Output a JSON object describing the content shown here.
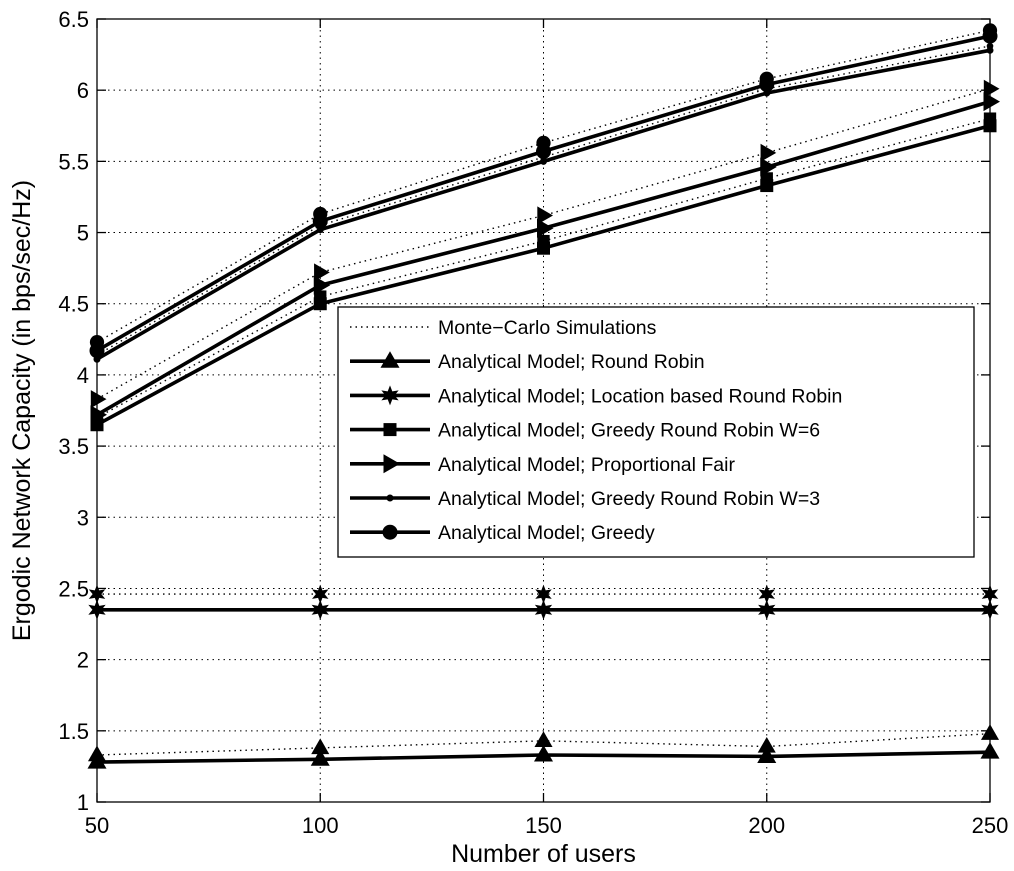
{
  "chart_data": {
    "type": "line",
    "title": "",
    "xlabel": "Number of users",
    "ylabel": "Ergodic Network Capacity (in bps/sec/Hz)",
    "xlim": [
      50,
      250
    ],
    "ylim": [
      1,
      6.5
    ],
    "xticks": [
      50,
      100,
      150,
      200,
      250
    ],
    "yticks": [
      1,
      1.5,
      2,
      2.5,
      3,
      3.5,
      4,
      4.5,
      5,
      5.5,
      6,
      6.5
    ],
    "xtick_labels": [
      "50",
      "100",
      "150",
      "200",
      "250"
    ],
    "ytick_labels": [
      "1",
      "1.5",
      "2",
      "2.5",
      "3",
      "3.5",
      "4",
      "4.5",
      "5",
      "5.5",
      "6",
      "6.5"
    ],
    "grid": true,
    "legend_position": "center-right",
    "x": [
      50,
      100,
      150,
      200,
      250
    ],
    "legend": [
      "Monte−Carlo Simulations",
      "Analytical Model; Round Robin",
      "Analytical Model; Location based Round Robin",
      "Analytical Model; Greedy Round Robin W=6",
      "Analytical Model; Proportional Fair",
      "Analytical Model; Greedy Round Robin W=3",
      "Analytical Model; Greedy"
    ],
    "series": [
      {
        "name": "Analytical Model; Round Robin",
        "marker": "triangle-up",
        "values": [
          1.28,
          1.3,
          1.33,
          1.32,
          1.35
        ],
        "sim_values": [
          1.33,
          1.38,
          1.43,
          1.39,
          1.48
        ]
      },
      {
        "name": "Analytical Model; Location based Round Robin",
        "marker": "hexagram",
        "values": [
          2.35,
          2.35,
          2.35,
          2.35,
          2.35
        ],
        "sim_values": [
          2.46,
          2.46,
          2.46,
          2.46,
          2.46
        ]
      },
      {
        "name": "Analytical Model; Greedy Round Robin W=6",
        "marker": "square",
        "values": [
          3.65,
          4.5,
          4.89,
          5.33,
          5.75
        ],
        "sim_values": [
          3.7,
          4.55,
          4.94,
          5.38,
          5.8
        ]
      },
      {
        "name": "Analytical Model; Proportional Fair",
        "marker": "triangle-right",
        "values": [
          3.72,
          4.63,
          5.03,
          5.46,
          5.92
        ],
        "sim_values": [
          3.83,
          4.72,
          5.12,
          5.56,
          6.01
        ]
      },
      {
        "name": "Analytical Model; Greedy Round Robin W=3",
        "marker": "dot",
        "values": [
          4.11,
          5.02,
          5.5,
          5.98,
          6.28
        ],
        "sim_values": [
          4.14,
          5.05,
          5.53,
          6.01,
          6.31
        ]
      },
      {
        "name": "Analytical Model; Greedy",
        "marker": "circle",
        "values": [
          4.17,
          5.08,
          5.57,
          6.04,
          6.38
        ],
        "sim_values": [
          4.23,
          5.13,
          5.63,
          6.08,
          6.42
        ]
      }
    ]
  }
}
